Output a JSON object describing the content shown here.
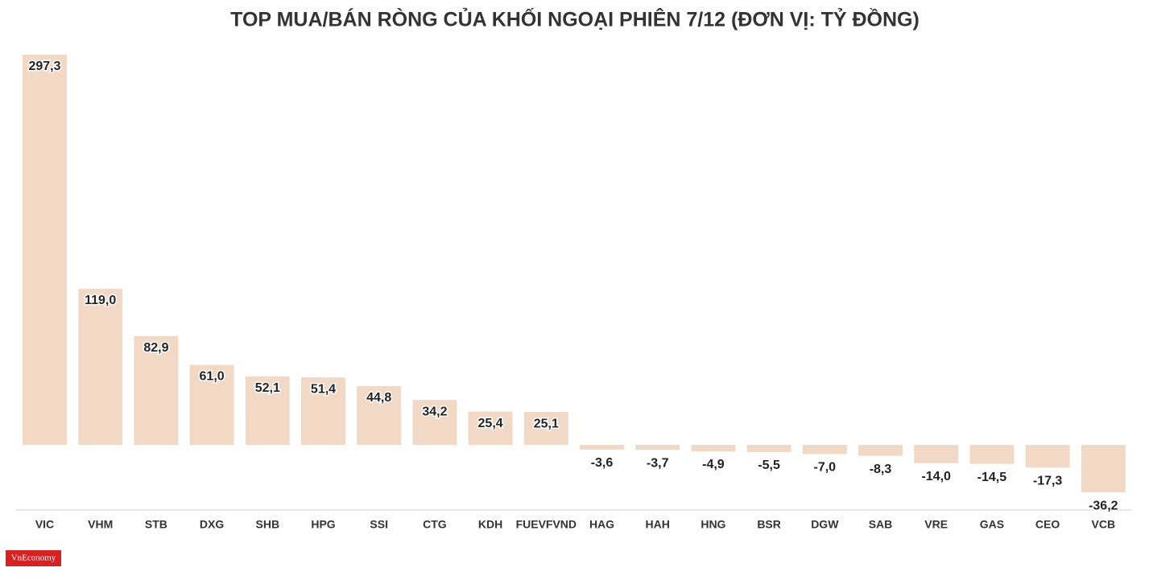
{
  "chart_data": {
    "type": "bar",
    "title": "TOP MUA/BÁN RÒNG CỦA KHỐI NGOẠI PHIÊN 7/12 (ĐƠN VỊ: TỶ ĐỒNG)",
    "categories": [
      "VIC",
      "VHM",
      "STB",
      "DXG",
      "SHB",
      "HPG",
      "SSI",
      "CTG",
      "KDH",
      "FUEVFVND",
      "HAG",
      "HAH",
      "HNG",
      "BSR",
      "DGW",
      "SAB",
      "VRE",
      "GAS",
      "CEO",
      "VCB"
    ],
    "values": [
      297.3,
      119.0,
      82.9,
      61.0,
      52.1,
      51.4,
      44.8,
      34.2,
      25.4,
      25.1,
      -3.6,
      -3.7,
      -4.9,
      -5.5,
      -7.0,
      -8.3,
      -14.0,
      -14.5,
      -17.3,
      -36.2
    ],
    "value_labels": [
      "297,3",
      "119,0",
      "82,9",
      "61,0",
      "52,1",
      "51,4",
      "44,8",
      "34,2",
      "25,4",
      "25,1",
      "-3,6",
      "-3,7",
      "-4,9",
      "-5,5",
      "-7,0",
      "-8,3",
      "-14,0",
      "-14,5",
      "-17,3",
      "-36,2"
    ],
    "color": "#f2d9c6"
  },
  "logo": "VnEconomy"
}
